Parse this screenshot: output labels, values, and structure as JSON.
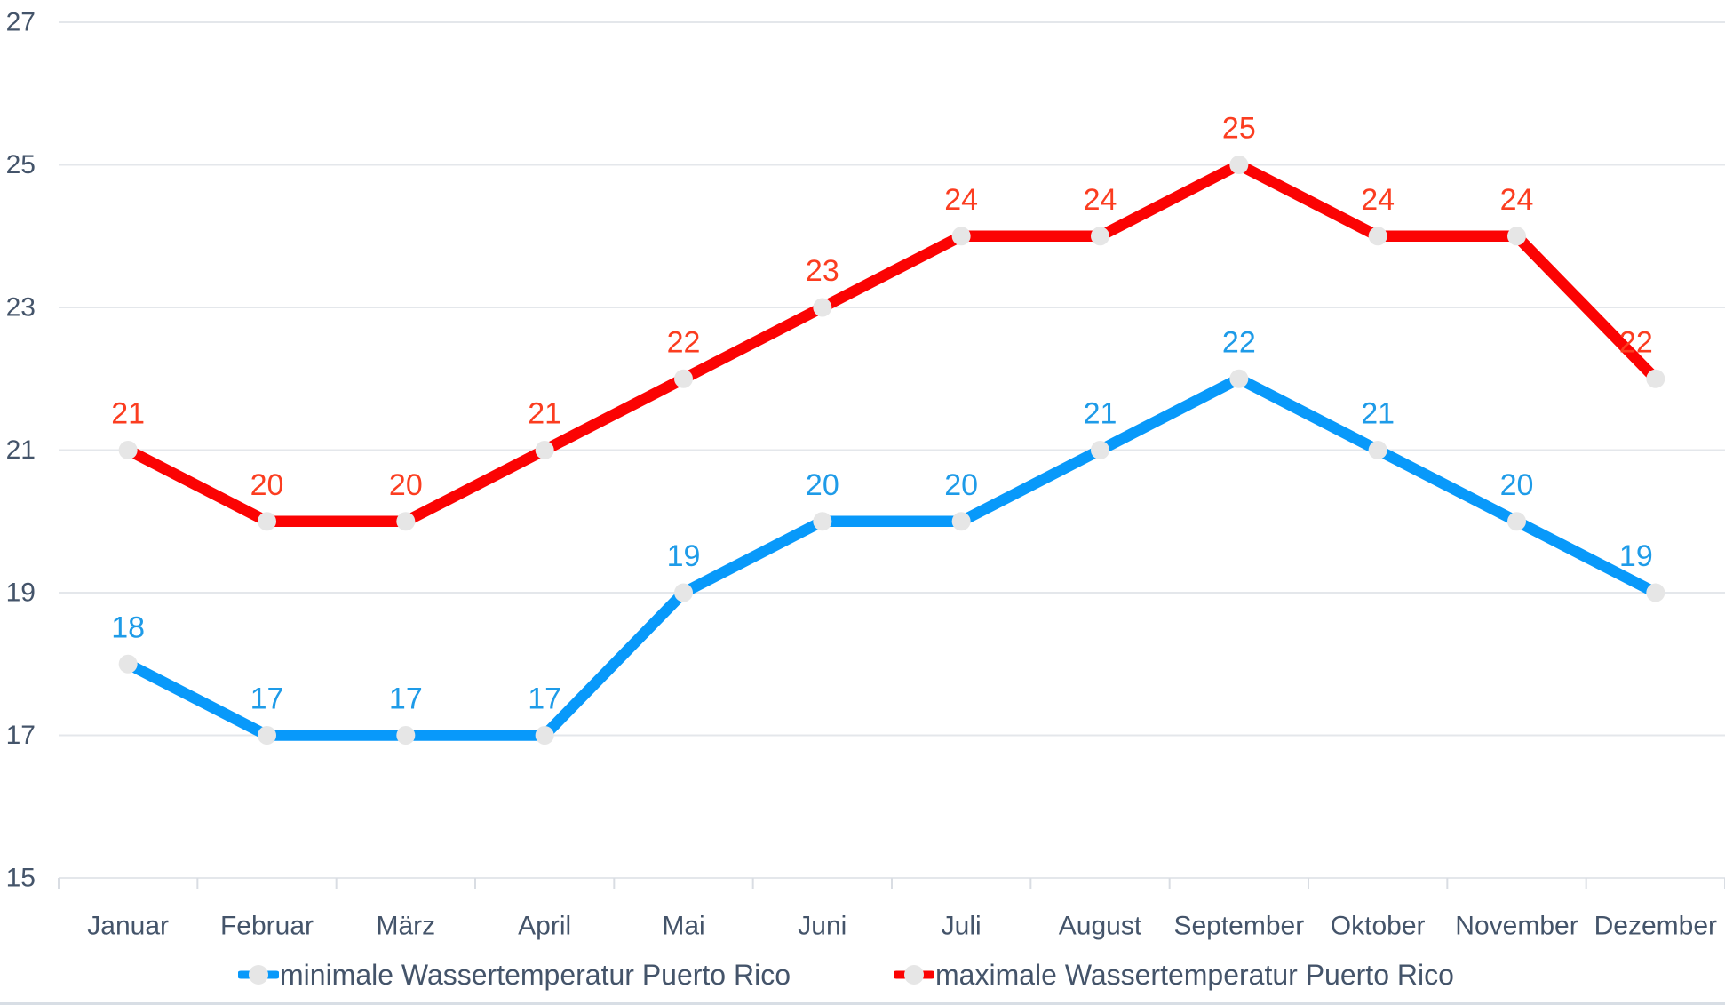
{
  "chart_data": {
    "type": "line",
    "title": "",
    "categories": [
      "Januar",
      "Februar",
      "März",
      "April",
      "Mai",
      "Juni",
      "Juli",
      "August",
      "September",
      "Oktober",
      "November",
      "Dezember"
    ],
    "y_ticks": [
      27,
      25,
      23,
      21,
      19,
      17,
      15
    ],
    "ylim": [
      15,
      27
    ],
    "grid": "horizontal-gridlines",
    "legend_position": "bottom",
    "series": [
      {
        "name": "minimale Wassertemperatur Puerto Rico",
        "values": [
          18,
          17,
          17,
          17,
          19,
          20,
          20,
          21,
          22,
          21,
          20,
          19
        ],
        "line_color": "#0899FA",
        "label_color": "#1E9BE8"
      },
      {
        "name": "maximale Wassertemperatur Puerto Rico",
        "values": [
          21,
          20,
          20,
          21,
          22,
          23,
          24,
          24,
          25,
          24,
          24,
          22
        ],
        "line_color": "#FB0303",
        "label_color": "#FB3D20"
      }
    ],
    "marker_color": "#E6E6E6",
    "axis_text_color": "#44546A",
    "gridline_color": "#E4E7EB",
    "tick_color": "#D9DDE3"
  },
  "legend": {
    "items": [
      {
        "label": "minimale Wassertemperatur Puerto Rico"
      },
      {
        "label": "maximale Wassertemperatur Puerto Rico"
      }
    ]
  }
}
